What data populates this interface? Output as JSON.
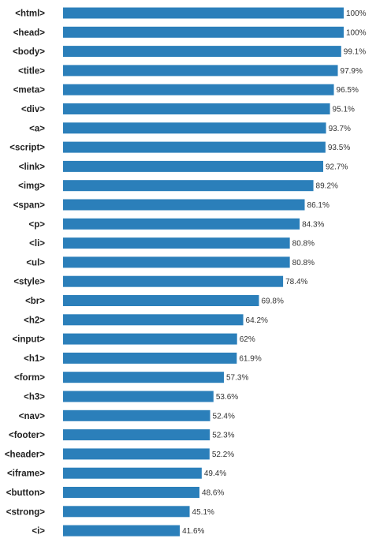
{
  "chart_data": {
    "type": "bar",
    "orientation": "horizontal",
    "categories": [
      "<html>",
      "<head>",
      "<body>",
      "<title>",
      "<meta>",
      "<div>",
      "<a>",
      "<script>",
      "<link>",
      "<img>",
      "<span>",
      "<p>",
      "<li>",
      "<ul>",
      "<style>",
      "<br>",
      "<h2>",
      "<input>",
      "<h1>",
      "<form>",
      "<h3>",
      "<nav>",
      "<footer>",
      "<header>",
      "<iframe>",
      "<button>",
      "<strong>",
      "<i>"
    ],
    "values": [
      100,
      100,
      99.1,
      97.9,
      96.5,
      95.1,
      93.7,
      93.5,
      92.7,
      89.2,
      86.1,
      84.3,
      80.8,
      80.8,
      78.4,
      69.8,
      64.2,
      62,
      61.9,
      57.3,
      53.6,
      52.4,
      52.3,
      52.2,
      49.4,
      48.6,
      45.1,
      41.6
    ],
    "data_labels": [
      "100%",
      "100%",
      "99.1%",
      "97.9%",
      "96.5%",
      "95.1%",
      "93.7%",
      "93.5%",
      "92.7%",
      "89.2%",
      "86.1%",
      "84.3%",
      "80.8%",
      "80.8%",
      "78.4%",
      "69.8%",
      "64.2%",
      "62%",
      "61.9%",
      "57.3%",
      "53.6%",
      "52.4%",
      "52.3%",
      "52.2%",
      "49.4%",
      "48.6%",
      "45.1%",
      "41.6%"
    ],
    "xlim": [
      0,
      100
    ],
    "grid": false,
    "legend": "none",
    "bar_color": "#2b7fba"
  }
}
